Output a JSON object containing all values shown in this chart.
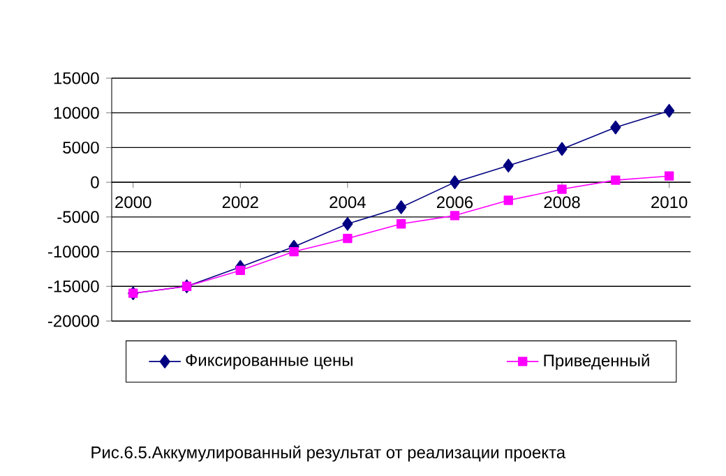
{
  "chart_data": {
    "type": "line",
    "x": [
      2000,
      2001,
      2002,
      2003,
      2004,
      2005,
      2006,
      2007,
      2008,
      2009,
      2010
    ],
    "series": [
      {
        "name": "Фиксированные цены",
        "color": "#000080",
        "marker": "diamond",
        "values": [
          -16000,
          -15000,
          -12200,
          -9300,
          -6000,
          -3600,
          0,
          2400,
          4800,
          7900,
          10300
        ]
      },
      {
        "name": "Приведенный",
        "color": "#ff00ff",
        "marker": "square",
        "values": [
          -16000,
          -15000,
          -12700,
          -10000,
          -8100,
          -6000,
          -4800,
          -2600,
          -1000,
          300,
          900
        ]
      }
    ],
    "xlim": [
      1999.6,
      2010.4
    ],
    "ylim": [
      -20000,
      15000
    ],
    "xticks": [
      2000,
      2002,
      2004,
      2006,
      2008,
      2010
    ],
    "yticks": [
      -20000,
      -15000,
      -10000,
      -5000,
      0,
      5000,
      10000,
      15000
    ],
    "grid": "y",
    "legend": "bottom",
    "line_style": "solid",
    "annotations": [
      "Рис.6.5.Аккумулированный результат от реализации проекта"
    ]
  }
}
